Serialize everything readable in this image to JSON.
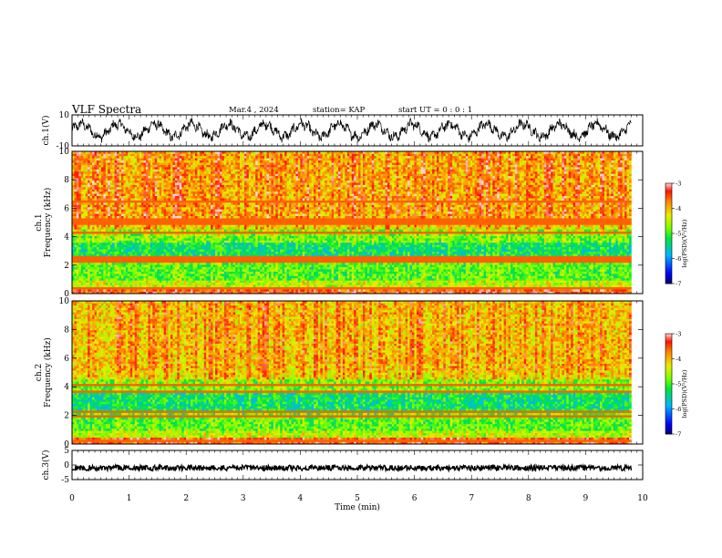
{
  "header": {
    "title": "VLF Spectra",
    "date": "Mar.4 , 2024",
    "station": "station= KAP",
    "start_ut": "start UT =  0 : 0 : 1"
  },
  "chart_data": [
    {
      "type": "line",
      "panel": "ch1-waveform",
      "ylabel": "ch.1(V)",
      "ylim": [
        -10,
        10
      ],
      "yticks": [
        "10",
        "-10"
      ],
      "xlim": [
        0,
        10
      ],
      "description_values": {
        "x_end": 9.8,
        "mean": 0,
        "amplitude": 5
      }
    },
    {
      "type": "heatmap",
      "panel": "ch1-spectrogram",
      "ylabel_line1": "ch.1",
      "ylabel_line2": "Frequency (kHz)",
      "ylim": [
        0,
        10
      ],
      "yticks": [
        "0",
        "2",
        "4",
        "6",
        "8",
        "10"
      ],
      "xlim": [
        0,
        10
      ],
      "x_end": 9.8,
      "colorbar": {
        "label": "log(PSD)(V²/Hz)",
        "range": [
          -7,
          -3
        ],
        "ticks": [
          "-3",
          "-4",
          "-5",
          "-6",
          "-7"
        ]
      }
    },
    {
      "type": "heatmap",
      "panel": "ch2-spectrogram",
      "ylabel_line1": "ch.2",
      "ylabel_line2": "Frequency (kHz)",
      "ylim": [
        0,
        10
      ],
      "yticks": [
        "0",
        "2",
        "4",
        "6",
        "8",
        "10"
      ],
      "xlim": [
        0,
        10
      ],
      "x_end": 9.8,
      "colorbar": {
        "label": "log(PSD)(V²/Hz)",
        "range": [
          -7,
          -3
        ],
        "ticks": [
          "-3",
          "-4",
          "-5",
          "-6",
          "-7"
        ]
      }
    },
    {
      "type": "line",
      "panel": "ch3-waveform",
      "ylabel": "ch.3(V)",
      "ylim": [
        -5,
        5
      ],
      "yticks": [
        "5",
        "0",
        "-5"
      ],
      "xlim": [
        0,
        10
      ],
      "x_end": 9.8,
      "level": -1
    }
  ],
  "xaxis": {
    "label": "Time (min)",
    "ticks": [
      "0",
      "1",
      "2",
      "3",
      "4",
      "5",
      "6",
      "7",
      "8",
      "9",
      "10"
    ]
  }
}
